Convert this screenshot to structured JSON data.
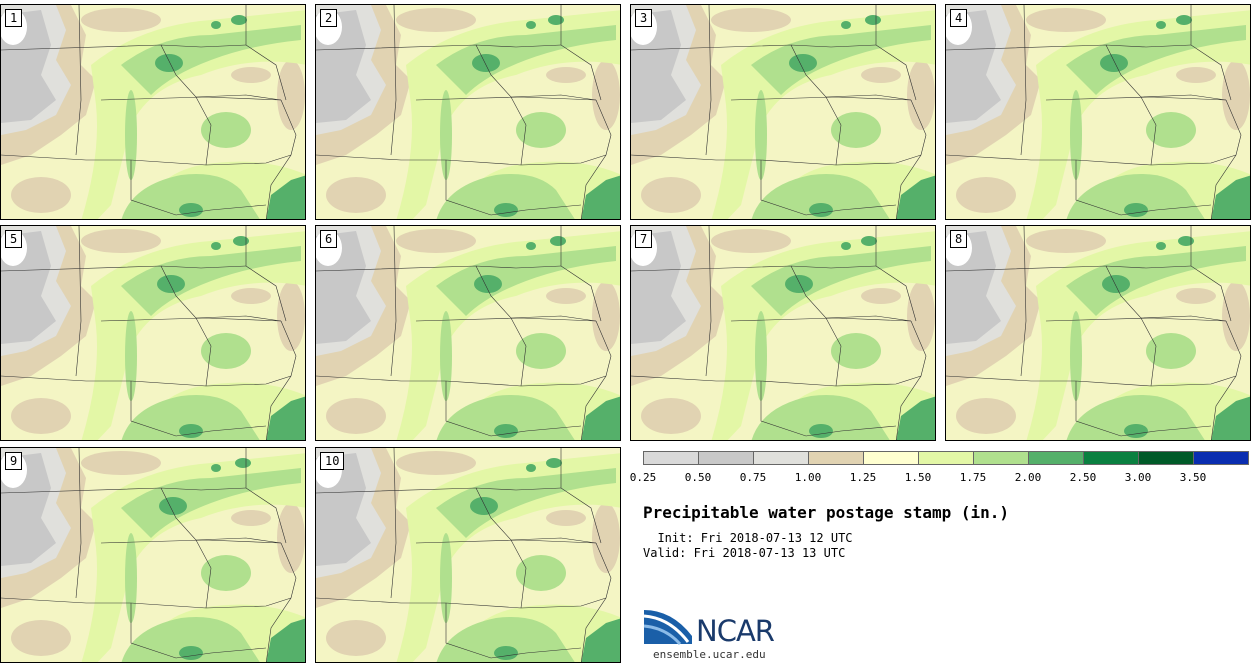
{
  "panels": [
    {
      "label": "1"
    },
    {
      "label": "2"
    },
    {
      "label": "3"
    },
    {
      "label": "4"
    },
    {
      "label": "5"
    },
    {
      "label": "6"
    },
    {
      "label": "7"
    },
    {
      "label": "8"
    },
    {
      "label": "9"
    },
    {
      "label": "10"
    }
  ],
  "legend": {
    "colors": [
      "#d9d9d9",
      "#c8c8c8",
      "#e0e0dc",
      "#e1d3b2",
      "#ffffd0",
      "#e3f7a6",
      "#b0e08e",
      "#55b06a",
      "#0a8040",
      "#005a28",
      "#0a2db0"
    ],
    "tick_labels": [
      "0.25",
      "0.50",
      "0.75",
      "1.00",
      "1.25",
      "1.50",
      "1.75",
      "2.00",
      "2.50",
      "3.00",
      "3.50"
    ]
  },
  "title": "Precipitable water postage stamp (in.)",
  "init_line": "  Init: Fri 2018-07-13 12 UTC",
  "valid_line": "Valid: Fri 2018-07-13 13 UTC",
  "logo": {
    "text": "NCAR",
    "url": "ensemble.ucar.edu"
  }
}
